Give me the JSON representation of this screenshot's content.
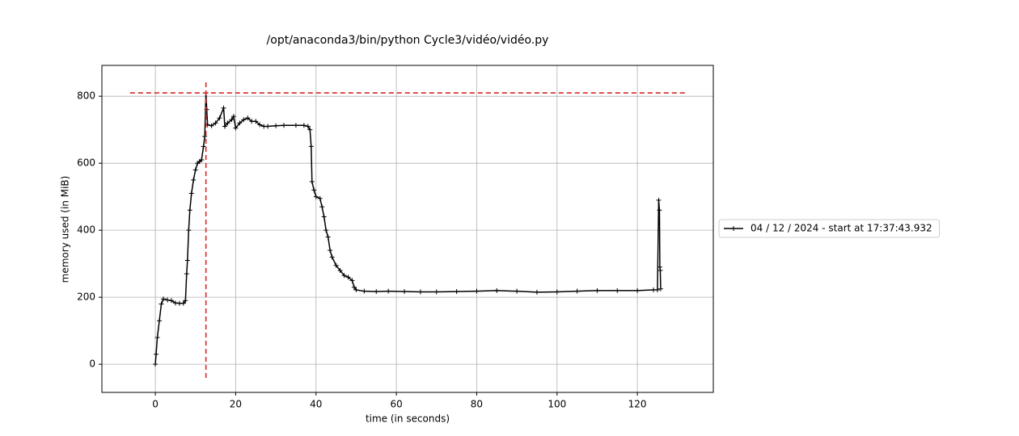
{
  "chart_data": {
    "type": "line",
    "title": "/opt/anaconda3/bin/python Cycle3/vidéo/vidéo.py",
    "xlabel": "time (in seconds)",
    "ylabel": "memory used (in MiB)",
    "xlim": [
      -13.3,
      138.9
    ],
    "ylim": [
      -84,
      892
    ],
    "xticks": [
      0,
      20,
      40,
      60,
      80,
      100,
      120
    ],
    "yticks": [
      0,
      200,
      400,
      600,
      800
    ],
    "grid": true,
    "legend": "right",
    "series": [
      {
        "name": "04 / 12 / 2024 - start at 17:37:43.932",
        "color": "#000000",
        "x": [
          0,
          0.2,
          0.5,
          1,
          1.5,
          2,
          3,
          4,
          5,
          6,
          7,
          7.5,
          7.8,
          8,
          8.3,
          8.6,
          9,
          9.5,
          10,
          10.5,
          11,
          11.5,
          12,
          12.3,
          12.6,
          12.8,
          13,
          14,
          15,
          16,
          17,
          17.3,
          18,
          19,
          19.5,
          20,
          21,
          22,
          23,
          24,
          25,
          26,
          27,
          28,
          30,
          32,
          35,
          37,
          38,
          38.5,
          38.8,
          39,
          39.5,
          40,
          41,
          41.5,
          42,
          42.5,
          43,
          43.5,
          44,
          45,
          46,
          47,
          48,
          49,
          49.5,
          50,
          52,
          55,
          58,
          62,
          66,
          70,
          75,
          80,
          85,
          90,
          95,
          100,
          105,
          110,
          115,
          120,
          124,
          125,
          125.3,
          125.5,
          125.6,
          125.7,
          125.8
        ],
        "values": [
          0,
          30,
          80,
          130,
          180,
          195,
          192,
          190,
          183,
          182,
          182,
          190,
          270,
          310,
          400,
          460,
          510,
          550,
          580,
          600,
          605,
          610,
          650,
          680,
          810,
          760,
          715,
          712,
          720,
          735,
          765,
          710,
          720,
          730,
          740,
          705,
          720,
          730,
          735,
          725,
          725,
          715,
          710,
          710,
          712,
          713,
          713,
          713,
          710,
          700,
          650,
          545,
          520,
          500,
          495,
          470,
          440,
          400,
          380,
          340,
          320,
          295,
          280,
          265,
          260,
          250,
          230,
          222,
          218,
          217,
          218,
          217,
          216,
          216,
          217,
          218,
          220,
          218,
          215,
          216,
          218,
          220,
          220,
          220,
          222,
          222,
          490,
          460,
          290,
          280,
          225
        ]
      }
    ],
    "max_marker": {
      "x": 12.6,
      "y": 810,
      "color": "#d62728"
    }
  }
}
